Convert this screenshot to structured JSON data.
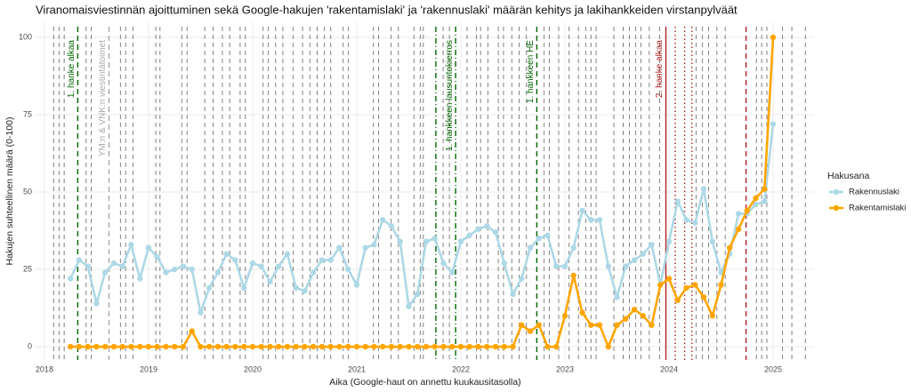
{
  "chart_data": {
    "type": "line",
    "title": "Viranomaisviestinnän ajoittuminen sekä Google-hakujen 'rakentamislaki' ja 'rakennuslaki' määrän kehitys ja lakihankkeiden virstanpylväät",
    "x_label": "Aika (Google-haut on annettu kuukausitasolla)",
    "y_label": "Hakujen suhteellinen määrä (0-100)",
    "legend_title": "Hakusana",
    "xlim": [
      2017.915,
      2025.393
    ],
    "ylim": [
      -4.3,
      104.9
    ],
    "xticks": [
      2018,
      2019,
      2020,
      2021,
      2022,
      2023,
      2024,
      2025
    ],
    "yticks": [
      0,
      25,
      50,
      75,
      100
    ],
    "grid": true,
    "x": [
      2018.25,
      2018.333,
      2018.417,
      2018.5,
      2018.583,
      2018.667,
      2018.75,
      2018.833,
      2018.917,
      2019.0,
      2019.083,
      2019.167,
      2019.25,
      2019.333,
      2019.417,
      2019.5,
      2019.583,
      2019.667,
      2019.75,
      2019.833,
      2019.917,
      2020.0,
      2020.083,
      2020.167,
      2020.25,
      2020.333,
      2020.417,
      2020.5,
      2020.583,
      2020.667,
      2020.75,
      2020.833,
      2020.917,
      2021.0,
      2021.083,
      2021.167,
      2021.25,
      2021.333,
      2021.417,
      2021.5,
      2021.583,
      2021.667,
      2021.75,
      2021.833,
      2021.917,
      2022.0,
      2022.083,
      2022.167,
      2022.25,
      2022.333,
      2022.417,
      2022.5,
      2022.583,
      2022.667,
      2022.75,
      2022.833,
      2022.917,
      2023.0,
      2023.083,
      2023.167,
      2023.25,
      2023.333,
      2023.417,
      2023.5,
      2023.583,
      2023.667,
      2023.75,
      2023.833,
      2023.917,
      2024.0,
      2024.083,
      2024.167,
      2024.25,
      2024.333,
      2024.417,
      2024.5,
      2024.583,
      2024.667,
      2024.75,
      2024.833,
      2024.917,
      2025.0
    ],
    "series": [
      {
        "name": "Rakennuslaki",
        "color": "#add8e6",
        "values": [
          22,
          28,
          26,
          14,
          24,
          27,
          26,
          33,
          22,
          32,
          29,
          24,
          25,
          26,
          25,
          11,
          19,
          24,
          30,
          28,
          19,
          27,
          26,
          21,
          26,
          30,
          19,
          18,
          24,
          28,
          28,
          32,
          25,
          20,
          32,
          33,
          41,
          39,
          34,
          13,
          17,
          34,
          35,
          27,
          24,
          34,
          36,
          38,
          39,
          37,
          27,
          17,
          22,
          32,
          35,
          36,
          26,
          26,
          32,
          44,
          41,
          41,
          26,
          16,
          26,
          28,
          30,
          33,
          20,
          34,
          47,
          41,
          40,
          51,
          34,
          24,
          30,
          43,
          43,
          46,
          47,
          72
        ]
      },
      {
        "name": "Rakentamislaki",
        "color": "#ffa500",
        "values": [
          0,
          0,
          0,
          0,
          0,
          0,
          0,
          0,
          0,
          0,
          0,
          0,
          0,
          0,
          5,
          0,
          0,
          0,
          0,
          0,
          0,
          0,
          0,
          0,
          0,
          0,
          0,
          0,
          0,
          0,
          0,
          0,
          0,
          0,
          0,
          0,
          0,
          0,
          0,
          0,
          0,
          0,
          0,
          0,
          0,
          0,
          0,
          0,
          0,
          0,
          0,
          0,
          7,
          5,
          7,
          0,
          0,
          10,
          23,
          11,
          7,
          7,
          0,
          7,
          9,
          12,
          10,
          7,
          20,
          22,
          15,
          19,
          20,
          16,
          10,
          20,
          32,
          38,
          44,
          48,
          51,
          100
        ]
      }
    ],
    "event_lines": [
      2018.09,
      2018.14,
      2018.19,
      2018.4,
      2018.45,
      2018.73,
      2018.78,
      2018.85,
      2019.07,
      2019.11,
      2019.32,
      2019.37,
      2019.54,
      2019.62,
      2019.71,
      2019.78,
      2019.88,
      2019.93,
      2020.1,
      2020.15,
      2020.22,
      2020.29,
      2020.39,
      2020.48,
      2020.55,
      2020.62,
      2020.69,
      2020.75,
      2020.87,
      2020.92,
      2021.16,
      2021.21,
      2021.33,
      2021.4,
      2021.55,
      2021.61,
      2021.64,
      2021.83,
      2021.89,
      2022.06,
      2022.15,
      2022.19,
      2022.26,
      2022.36,
      2022.41,
      2022.49,
      2022.56,
      2022.63,
      2022.8,
      2022.85,
      2022.94,
      2023.04,
      2023.13,
      2023.2,
      2023.25,
      2023.3,
      2023.47,
      2023.56,
      2023.62,
      2023.68,
      2023.73,
      2023.81,
      2023.91,
      2024.26,
      2024.32,
      2024.38,
      2024.46,
      2024.54,
      2024.84,
      2024.89,
      2024.94,
      2025.09,
      2025.18,
      2025.31
    ],
    "event_color": "#808080",
    "milestones": [
      {
        "x": 2018.32,
        "label": "1. hanke alkaa",
        "color": "#006400",
        "style": "dashed"
      },
      {
        "x": 2018.62,
        "label": "YM:n & VNK:n viestintätoimet",
        "color": "#a9a9a9",
        "style": "dashed"
      },
      {
        "x": 2021.76,
        "color": "#006400",
        "style": "dashdot"
      },
      {
        "x": 2021.95,
        "label": "1. hankkeen lausuntokierros",
        "color": "#006400",
        "style": "dashdot"
      },
      {
        "x": 2022.73,
        "label": "1. hankkeen HE",
        "color": "#006400",
        "style": "dashed"
      },
      {
        "x": 2023.97,
        "label": "2. hanke alkaa",
        "color": "#b22222",
        "style": "solid"
      },
      {
        "x": 2024.06,
        "color": "#b22222",
        "style": "dotted"
      },
      {
        "x": 2024.15,
        "color": "#b22222",
        "style": "dotted"
      },
      {
        "x": 2024.22,
        "color": "#b22222",
        "style": "dotted"
      },
      {
        "x": 2024.74,
        "color": "#b22222",
        "style": "dashed"
      }
    ]
  }
}
